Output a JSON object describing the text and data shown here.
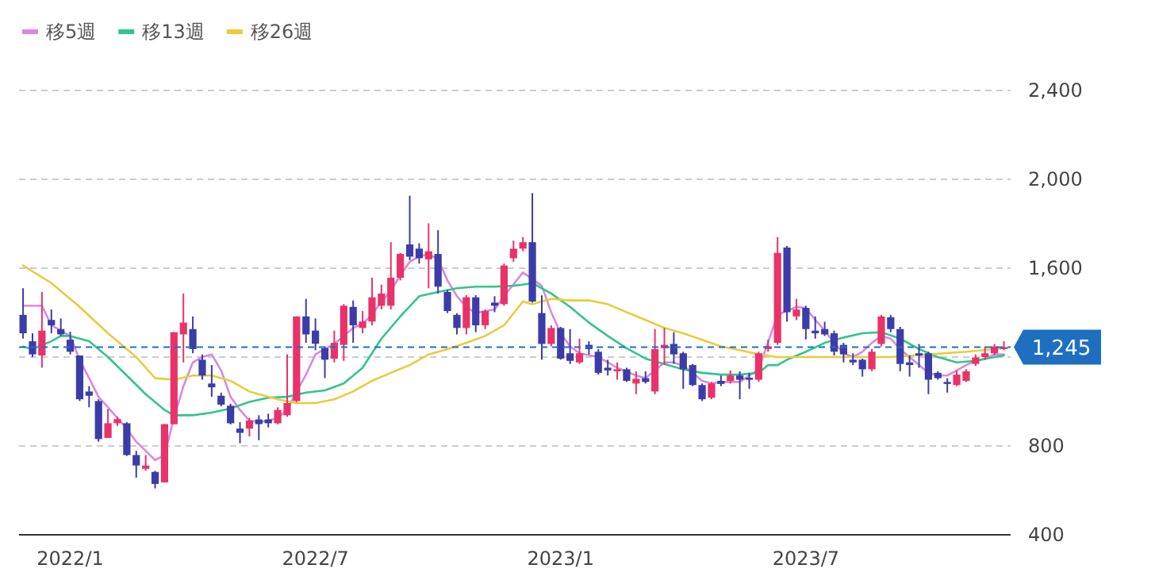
{
  "chart_data": {
    "type": "candlestick",
    "x": [
      "2021-11-29",
      "2021-12-06",
      "2021-12-13",
      "2021-12-20",
      "2021-12-27",
      "2022-01-03",
      "2022-01-10",
      "2022-01-17",
      "2022-01-24",
      "2022-01-31",
      "2022-02-07",
      "2022-02-14",
      "2022-02-21",
      "2022-02-28",
      "2022-03-07",
      "2022-03-14",
      "2022-03-21",
      "2022-03-28",
      "2022-04-04",
      "2022-04-11",
      "2022-04-18",
      "2022-04-25",
      "2022-05-02",
      "2022-05-09",
      "2022-05-16",
      "2022-05-23",
      "2022-05-30",
      "2022-06-06",
      "2022-06-13",
      "2022-06-20",
      "2022-06-27",
      "2022-07-04",
      "2022-07-11",
      "2022-07-18",
      "2022-07-25",
      "2022-08-01",
      "2022-08-08",
      "2022-08-15",
      "2022-08-22",
      "2022-08-29",
      "2022-09-05",
      "2022-09-12",
      "2022-09-19",
      "2022-09-26",
      "2022-10-03",
      "2022-10-10",
      "2022-10-17",
      "2022-10-24",
      "2022-10-31",
      "2022-11-07",
      "2022-11-14",
      "2022-11-21",
      "2022-11-28",
      "2022-12-05",
      "2022-12-12",
      "2022-12-19",
      "2022-12-26",
      "2023-01-02",
      "2023-01-09",
      "2023-01-16",
      "2023-01-23",
      "2023-01-30",
      "2023-02-06",
      "2023-02-13",
      "2023-02-20",
      "2023-02-27",
      "2023-03-06",
      "2023-03-13",
      "2023-03-20",
      "2023-03-27",
      "2023-04-03",
      "2023-04-10",
      "2023-04-17",
      "2023-04-24",
      "2023-05-01",
      "2023-05-08",
      "2023-05-15",
      "2023-05-22",
      "2023-05-29",
      "2023-06-05",
      "2023-06-12",
      "2023-06-19",
      "2023-06-26",
      "2023-07-03",
      "2023-07-10",
      "2023-07-17",
      "2023-07-24",
      "2023-07-31",
      "2023-08-07",
      "2023-08-14",
      "2023-08-21",
      "2023-08-28",
      "2023-09-04",
      "2023-09-11",
      "2023-09-18",
      "2023-09-25",
      "2023-10-02",
      "2023-10-09",
      "2023-10-16",
      "2023-10-23",
      "2023-10-30",
      "2023-11-06",
      "2023-11-13",
      "2023-11-20",
      "2023-11-27"
    ],
    "ohlc": [
      [
        1390,
        1510,
        1283,
        1307
      ],
      [
        1271,
        1307,
        1200,
        1212
      ],
      [
        1207,
        1493,
        1152,
        1319
      ],
      [
        1367,
        1414,
        1307,
        1343
      ],
      [
        1326,
        1374,
        1295,
        1302
      ],
      [
        1278,
        1314,
        1212,
        1224
      ],
      [
        1207,
        1207,
        1002,
        1010
      ],
      [
        1045,
        1069,
        974,
        1026
      ],
      [
        1002,
        1010,
        819,
        831
      ],
      [
        836,
        966,
        836,
        902
      ],
      [
        902,
        931,
        890,
        921
      ],
      [
        902,
        907,
        755,
        759
      ],
      [
        759,
        778,
        657,
        712
      ],
      [
        697,
        759,
        688,
        712
      ],
      [
        683,
        688,
        609,
        629
      ],
      [
        636,
        898,
        636,
        898
      ],
      [
        898,
        1312,
        898,
        1312
      ],
      [
        1302,
        1486,
        1176,
        1355
      ],
      [
        1326,
        1383,
        1217,
        1236
      ],
      [
        1188,
        1212,
        1098,
        1117
      ],
      [
        1081,
        1164,
        1021,
        1064
      ],
      [
        1026,
        1040,
        978,
        986
      ],
      [
        981,
        990,
        897,
        902
      ],
      [
        878,
        907,
        812,
        859
      ],
      [
        878,
        926,
        843,
        914
      ],
      [
        919,
        938,
        826,
        898
      ],
      [
        919,
        945,
        883,
        902
      ],
      [
        902,
        974,
        897,
        962
      ],
      [
        938,
        1212,
        931,
        993
      ],
      [
        1002,
        1383,
        997,
        1383
      ],
      [
        1383,
        1462,
        1264,
        1302
      ],
      [
        1319,
        1374,
        1231,
        1260
      ],
      [
        1240,
        1248,
        1105,
        1188
      ],
      [
        1193,
        1319,
        1176,
        1264
      ],
      [
        1255,
        1438,
        1183,
        1431
      ],
      [
        1426,
        1455,
        1264,
        1343
      ],
      [
        1331,
        1407,
        1307,
        1360
      ],
      [
        1360,
        1557,
        1343,
        1469
      ],
      [
        1431,
        1526,
        1414,
        1486
      ],
      [
        1431,
        1717,
        1414,
        1557
      ],
      [
        1557,
        1669,
        1545,
        1664
      ],
      [
        1707,
        1926,
        1636,
        1652
      ],
      [
        1688,
        1712,
        1621,
        1645
      ],
      [
        1640,
        1802,
        1510,
        1676
      ],
      [
        1664,
        1771,
        1486,
        1517
      ],
      [
        1493,
        1502,
        1398,
        1407
      ],
      [
        1390,
        1397,
        1302,
        1331
      ],
      [
        1331,
        1479,
        1302,
        1469
      ],
      [
        1469,
        1479,
        1312,
        1343
      ],
      [
        1343,
        1414,
        1326,
        1407
      ],
      [
        1445,
        1474,
        1402,
        1431
      ],
      [
        1438,
        1621,
        1431,
        1612
      ],
      [
        1645,
        1724,
        1629,
        1688
      ],
      [
        1688,
        1740,
        1676,
        1717
      ],
      [
        1717,
        1938,
        1445,
        1450
      ],
      [
        1398,
        1478,
        1188,
        1259
      ],
      [
        1259,
        1343,
        1248,
        1331
      ],
      [
        1331,
        1336,
        1188,
        1193
      ],
      [
        1217,
        1326,
        1169,
        1183
      ],
      [
        1176,
        1283,
        1169,
        1217
      ],
      [
        1255,
        1271,
        1212,
        1236
      ],
      [
        1224,
        1236,
        1121,
        1129
      ],
      [
        1152,
        1188,
        1117,
        1140
      ],
      [
        1136,
        1176,
        1098,
        1145
      ],
      [
        1145,
        1152,
        1088,
        1093
      ],
      [
        1081,
        1136,
        1033,
        1102
      ],
      [
        1105,
        1136,
        1081,
        1088
      ],
      [
        1045,
        1326,
        1033,
        1236
      ],
      [
        1240,
        1331,
        1164,
        1255
      ],
      [
        1259,
        1312,
        1169,
        1212
      ],
      [
        1217,
        1224,
        1057,
        1145
      ],
      [
        1164,
        1169,
        1069,
        1074
      ],
      [
        1074,
        1081,
        1002,
        1010
      ],
      [
        1017,
        1088,
        1010,
        1081
      ],
      [
        1093,
        1117,
        1069,
        1079
      ],
      [
        1093,
        1140,
        1081,
        1117
      ],
      [
        1117,
        1136,
        1010,
        1098
      ],
      [
        1107,
        1129,
        1057,
        1098
      ],
      [
        1098,
        1224,
        1088,
        1217
      ],
      [
        1236,
        1278,
        1224,
        1248
      ],
      [
        1264,
        1740,
        1255,
        1669
      ],
      [
        1693,
        1700,
        1359,
        1402
      ],
      [
        1383,
        1462,
        1366,
        1414
      ],
      [
        1421,
        1431,
        1279,
        1326
      ],
      [
        1319,
        1383,
        1283,
        1307
      ],
      [
        1326,
        1359,
        1295,
        1302
      ],
      [
        1307,
        1319,
        1207,
        1224
      ],
      [
        1255,
        1264,
        1176,
        1212
      ],
      [
        1188,
        1217,
        1164,
        1176
      ],
      [
        1188,
        1193,
        1112,
        1145
      ],
      [
        1145,
        1236,
        1136,
        1224
      ],
      [
        1259,
        1390,
        1248,
        1383
      ],
      [
        1379,
        1390,
        1312,
        1326
      ],
      [
        1326,
        1336,
        1136,
        1169
      ],
      [
        1176,
        1207,
        1112,
        1164
      ],
      [
        1217,
        1259,
        1152,
        1207
      ],
      [
        1217,
        1224,
        1033,
        1098
      ],
      [
        1129,
        1136,
        1098,
        1105
      ],
      [
        1088,
        1105,
        1040,
        1079
      ],
      [
        1074,
        1140,
        1069,
        1121
      ],
      [
        1093,
        1145,
        1088,
        1136
      ],
      [
        1169,
        1212,
        1160,
        1198
      ],
      [
        1200,
        1248,
        1188,
        1217
      ],
      [
        1217,
        1259,
        1207,
        1248
      ],
      [
        1236,
        1271,
        1231,
        1245
      ]
    ],
    "series": [
      {
        "name": "移5週",
        "type": "line",
        "color": "#d78ae0",
        "x": [
          "2021-11-29",
          "2021-12-13",
          "2021-12-20",
          "2022-01-03",
          "2022-01-10",
          "2022-01-17",
          "2022-01-24",
          "2022-01-31",
          "2022-02-14",
          "2022-02-21",
          "2022-03-07",
          "2022-03-14",
          "2022-03-21",
          "2022-03-28",
          "2022-04-04",
          "2022-04-11",
          "2022-04-18",
          "2022-04-25",
          "2022-05-02",
          "2022-05-09",
          "2022-05-16",
          "2022-05-23",
          "2022-05-30",
          "2022-06-06",
          "2022-06-13",
          "2022-06-20",
          "2022-06-27",
          "2022-07-04",
          "2022-07-11",
          "2022-07-18",
          "2022-07-25",
          "2022-08-01",
          "2022-08-08",
          "2022-08-15",
          "2022-08-22",
          "2022-08-29",
          "2022-09-05",
          "2022-09-12",
          "2022-09-19",
          "2022-09-26",
          "2022-10-03",
          "2022-10-10",
          "2022-10-17",
          "2022-10-24",
          "2022-10-31",
          "2022-11-07",
          "2022-11-14",
          "2022-11-21",
          "2022-12-05",
          "2022-12-19",
          "2022-12-26",
          "2023-01-02",
          "2023-01-09",
          "2023-01-16",
          "2023-01-30",
          "2023-02-13",
          "2023-02-27",
          "2023-03-06",
          "2023-03-13",
          "2023-03-20",
          "2023-03-27",
          "2023-04-03",
          "2023-04-10",
          "2023-04-17",
          "2023-04-24",
          "2023-05-01",
          "2023-05-08",
          "2023-05-15",
          "2023-05-22",
          "2023-05-29",
          "2023-06-12",
          "2023-06-19",
          "2023-06-26",
          "2023-07-03",
          "2023-07-10",
          "2023-07-17",
          "2023-07-24",
          "2023-07-31",
          "2023-08-07",
          "2023-08-14",
          "2023-08-21",
          "2023-08-28",
          "2023-09-04",
          "2023-09-11",
          "2023-09-18",
          "2023-09-25",
          "2023-10-02",
          "2023-10-09",
          "2023-10-16",
          "2023-10-23",
          "2023-10-30",
          "2023-11-06",
          "2023-11-13",
          "2023-11-20",
          "2023-11-27"
        ],
        "values": [
          1431,
          1431,
          1343,
          1295,
          1188,
          1105,
          1021,
          974,
          878,
          819,
          736,
          759,
          926,
          1069,
          1176,
          1200,
          1212,
          1140,
          1021,
          962,
          914,
          907,
          914,
          926,
          962,
          1045,
          1121,
          1212,
          1236,
          1259,
          1295,
          1331,
          1350,
          1390,
          1450,
          1498,
          1569,
          1629,
          1652,
          1664,
          1640,
          1545,
          1474,
          1426,
          1398,
          1407,
          1414,
          1474,
          1581,
          1521,
          1402,
          1307,
          1248,
          1217,
          1200,
          1152,
          1117,
          1105,
          1140,
          1176,
          1176,
          1160,
          1129,
          1093,
          1081,
          1088,
          1088,
          1088,
          1117,
          1145,
          1390,
          1407,
          1426,
          1421,
          1367,
          1319,
          1264,
          1217,
          1200,
          1224,
          1264,
          1295,
          1283,
          1236,
          1200,
          1164,
          1129,
          1117,
          1117,
          1140,
          1164,
          1183,
          1193,
          1212,
          1212
        ]
      },
      {
        "name": "移13週",
        "type": "line",
        "color": "#33c48c",
        "x": [
          "2021-11-29",
          "2021-12-06",
          "2021-12-20",
          "2021-12-27",
          "2022-01-03",
          "2022-01-17",
          "2022-01-31",
          "2022-02-14",
          "2022-02-28",
          "2022-03-14",
          "2022-03-21",
          "2022-04-04",
          "2022-04-18",
          "2022-05-02",
          "2022-05-16",
          "2022-05-30",
          "2022-06-13",
          "2022-06-27",
          "2022-07-11",
          "2022-07-25",
          "2022-08-08",
          "2022-08-22",
          "2022-09-05",
          "2022-09-19",
          "2022-10-03",
          "2022-10-17",
          "2022-10-31",
          "2022-11-14",
          "2022-11-28",
          "2022-12-05",
          "2022-12-12",
          "2022-12-26",
          "2023-01-09",
          "2023-01-23",
          "2023-02-06",
          "2023-02-20",
          "2023-03-06",
          "2023-03-20",
          "2023-04-03",
          "2023-04-17",
          "2023-05-01",
          "2023-05-15",
          "2023-05-29",
          "2023-06-05",
          "2023-06-12",
          "2023-06-19",
          "2023-07-03",
          "2023-07-17",
          "2023-07-31",
          "2023-08-14",
          "2023-08-28",
          "2023-09-11",
          "2023-09-25",
          "2023-10-09",
          "2023-10-23",
          "2023-11-06",
          "2023-11-20",
          "2023-11-27"
        ],
        "values": [
          1247,
          1236,
          1271,
          1295,
          1295,
          1271,
          1200,
          1117,
          1033,
          962,
          938,
          938,
          950,
          969,
          998,
          1017,
          1021,
          1040,
          1050,
          1081,
          1152,
          1283,
          1383,
          1474,
          1493,
          1510,
          1517,
          1517,
          1521,
          1526,
          1533,
          1486,
          1426,
          1355,
          1295,
          1240,
          1193,
          1169,
          1145,
          1129,
          1121,
          1121,
          1129,
          1164,
          1164,
          1188,
          1224,
          1264,
          1288,
          1307,
          1312,
          1283,
          1236,
          1200,
          1176,
          1183,
          1200,
          1207
        ]
      },
      {
        "name": "移26週",
        "type": "line",
        "color": "#e8cc3c",
        "x": [
          "2021-11-29",
          "2021-12-20",
          "2022-01-10",
          "2022-01-31",
          "2022-02-21",
          "2022-03-07",
          "2022-03-21",
          "2022-04-04",
          "2022-04-18",
          "2022-05-02",
          "2022-05-16",
          "2022-05-30",
          "2022-06-06",
          "2022-06-20",
          "2022-07-04",
          "2022-07-18",
          "2022-08-01",
          "2022-08-15",
          "2022-08-29",
          "2022-09-12",
          "2022-09-26",
          "2022-10-10",
          "2022-10-24",
          "2022-11-07",
          "2022-11-21",
          "2022-12-05",
          "2022-12-12",
          "2022-12-26",
          "2023-01-09",
          "2023-01-23",
          "2023-02-06",
          "2023-02-20",
          "2023-03-06",
          "2023-03-20",
          "2023-04-03",
          "2023-04-17",
          "2023-05-01",
          "2023-05-15",
          "2023-05-29",
          "2023-06-12",
          "2023-06-19",
          "2023-07-10",
          "2023-08-07",
          "2023-09-04",
          "2023-10-02",
          "2023-10-30",
          "2023-11-20",
          "2023-11-27"
        ],
        "values": [
          1612,
          1533,
          1426,
          1307,
          1200,
          1105,
          1098,
          1117,
          1117,
          1093,
          1045,
          1021,
          1010,
          993,
          993,
          1010,
          1045,
          1093,
          1129,
          1164,
          1212,
          1236,
          1264,
          1295,
          1343,
          1450,
          1438,
          1462,
          1455,
          1455,
          1438,
          1402,
          1367,
          1331,
          1307,
          1278,
          1248,
          1231,
          1212,
          1200,
          1200,
          1200,
          1200,
          1200,
          1212,
          1224,
          1236,
          1240
        ]
      }
    ],
    "xlim": [
      "2021-11-26",
      "2023-12-02"
    ],
    "xticks": [
      {
        "value": "2022-01-03",
        "label": "2022/1"
      },
      {
        "value": "2022-07-04",
        "label": "2022/7"
      },
      {
        "value": "2023-01-02",
        "label": "2023/1"
      },
      {
        "value": "2023-07-03",
        "label": "2023/7"
      }
    ],
    "ylim": [
      400,
      2400
    ],
    "yticks": [
      400,
      800,
      {
        "value": 1200,
        "label": null
      },
      {
        "value": 1600,
        "label": "1,600"
      },
      {
        "value": 2000,
        "label": "2,000"
      },
      {
        "value": 2400,
        "label": "2,400"
      }
    ],
    "grid": "y",
    "legend": "top left",
    "ref_lines": [
      {
        "axis": "y",
        "value": 1245,
        "label": "1,245",
        "color": "#1f6fc0",
        "line_style": "dashed"
      }
    ]
  }
}
